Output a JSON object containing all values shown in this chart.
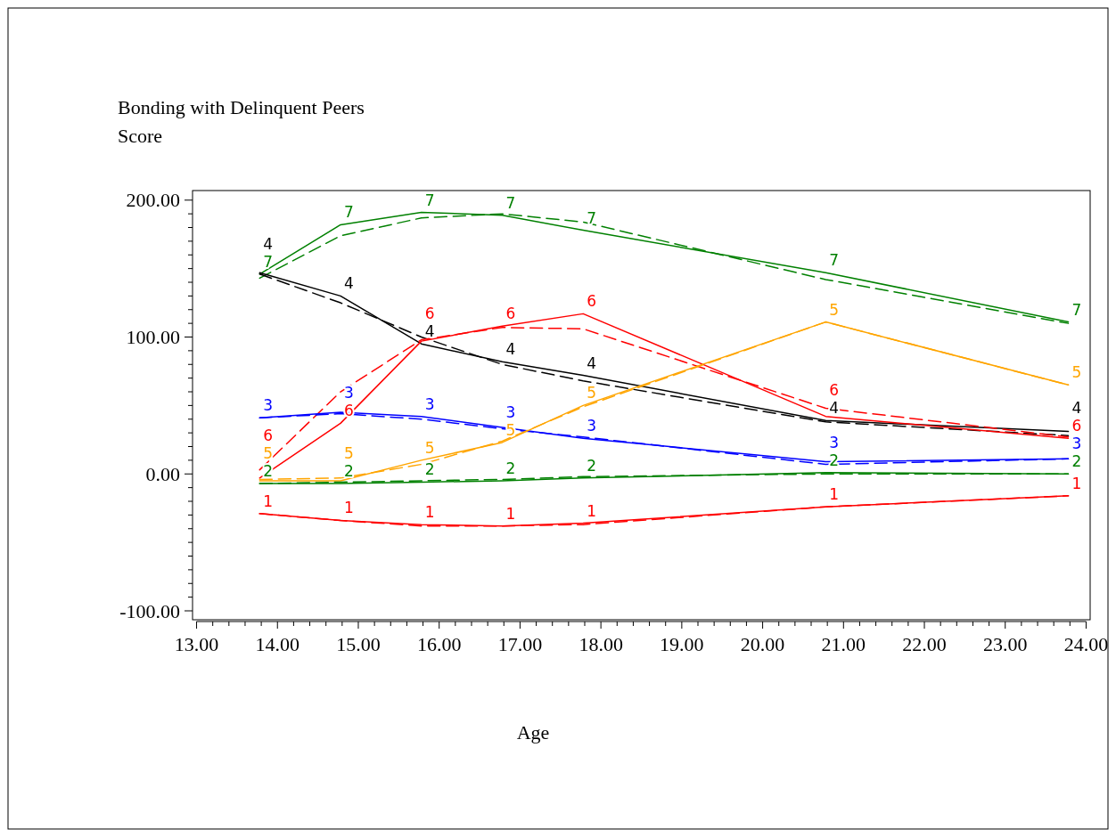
{
  "chart_data": {
    "type": "line",
    "ylabel": "Bonding with Delinquent Peers\nScore",
    "xlabel": "Age",
    "x": [
      13.78,
      14.78,
      15.78,
      16.78,
      17.78,
      20.78,
      23.78
    ],
    "xlim": [
      12.95,
      24.05
    ],
    "ylim": [
      -106.5,
      207
    ],
    "xticks": [
      {
        "value": 13,
        "label": "13.00"
      },
      {
        "value": 13.2,
        "label": null
      },
      {
        "value": 13.4,
        "label": null
      },
      {
        "value": 13.6,
        "label": null
      },
      {
        "value": 13.8,
        "label": null
      },
      {
        "value": 14,
        "label": "14.00"
      },
      {
        "value": 14.2,
        "label": null
      },
      {
        "value": 14.4,
        "label": null
      },
      {
        "value": 14.6,
        "label": null
      },
      {
        "value": 14.8,
        "label": null
      },
      {
        "value": 15,
        "label": "15.00"
      },
      {
        "value": 15.2,
        "label": null
      },
      {
        "value": 15.4,
        "label": null
      },
      {
        "value": 15.6,
        "label": null
      },
      {
        "value": 15.8,
        "label": null
      },
      {
        "value": 16,
        "label": "16.00"
      },
      {
        "value": 16.2,
        "label": null
      },
      {
        "value": 16.4,
        "label": null
      },
      {
        "value": 16.6,
        "label": null
      },
      {
        "value": 16.8,
        "label": null
      },
      {
        "value": 17,
        "label": "17.00"
      },
      {
        "value": 17.2,
        "label": null
      },
      {
        "value": 17.4,
        "label": null
      },
      {
        "value": 17.6,
        "label": null
      },
      {
        "value": 17.8,
        "label": null
      },
      {
        "value": 18,
        "label": "18.00"
      },
      {
        "value": 18.2,
        "label": null
      },
      {
        "value": 18.4,
        "label": null
      },
      {
        "value": 18.6,
        "label": null
      },
      {
        "value": 18.8,
        "label": null
      },
      {
        "value": 19,
        "label": "19.00"
      },
      {
        "value": 19.2,
        "label": null
      },
      {
        "value": 19.4,
        "label": null
      },
      {
        "value": 19.6,
        "label": null
      },
      {
        "value": 19.8,
        "label": null
      },
      {
        "value": 20,
        "label": "20.00"
      },
      {
        "value": 20.2,
        "label": null
      },
      {
        "value": 20.4,
        "label": null
      },
      {
        "value": 20.6,
        "label": null
      },
      {
        "value": 20.8,
        "label": null
      },
      {
        "value": 21,
        "label": "21.00"
      },
      {
        "value": 21.2,
        "label": null
      },
      {
        "value": 21.4,
        "label": null
      },
      {
        "value": 21.6,
        "label": null
      },
      {
        "value": 21.8,
        "label": null
      },
      {
        "value": 22,
        "label": "22.00"
      },
      {
        "value": 22.2,
        "label": null
      },
      {
        "value": 22.4,
        "label": null
      },
      {
        "value": 22.6,
        "label": null
      },
      {
        "value": 22.8,
        "label": null
      },
      {
        "value": 23,
        "label": "23.00"
      },
      {
        "value": 23.2,
        "label": null
      },
      {
        "value": 23.4,
        "label": null
      },
      {
        "value": 23.6,
        "label": null
      },
      {
        "value": 23.8,
        "label": null
      },
      {
        "value": 24,
        "label": "24.00"
      }
    ],
    "yticks": [
      {
        "value": -100,
        "label": "-100.00"
      },
      {
        "value": -90,
        "label": null
      },
      {
        "value": -80,
        "label": null
      },
      {
        "value": -70,
        "label": null
      },
      {
        "value": -60,
        "label": null
      },
      {
        "value": -50,
        "label": null
      },
      {
        "value": -40,
        "label": null
      },
      {
        "value": -30,
        "label": null
      },
      {
        "value": -20,
        "label": null
      },
      {
        "value": -10,
        "label": null
      },
      {
        "value": 0,
        "label": "0.00"
      },
      {
        "value": 10,
        "label": null
      },
      {
        "value": 20,
        "label": null
      },
      {
        "value": 30,
        "label": null
      },
      {
        "value": 40,
        "label": null
      },
      {
        "value": 50,
        "label": null
      },
      {
        "value": 60,
        "label": null
      },
      {
        "value": 70,
        "label": null
      },
      {
        "value": 80,
        "label": null
      },
      {
        "value": 90,
        "label": null
      },
      {
        "value": 100,
        "label": "100.00"
      },
      {
        "value": 110,
        "label": null
      },
      {
        "value": 120,
        "label": null
      },
      {
        "value": 130,
        "label": null
      },
      {
        "value": 140,
        "label": null
      },
      {
        "value": 150,
        "label": null
      },
      {
        "value": 160,
        "label": null
      },
      {
        "value": 170,
        "label": null
      },
      {
        "value": 180,
        "label": null
      },
      {
        "value": 190,
        "label": null
      },
      {
        "value": 200,
        "label": "200.00"
      }
    ],
    "grid": false,
    "legend": false,
    "series": [
      {
        "name": "7",
        "color": "#008000",
        "line_style": "solid",
        "values": [
          146,
          182,
          191,
          189,
          178,
          147,
          111
        ]
      },
      {
        "color": "#008000",
        "line_style": "dashed",
        "values": [
          143,
          174,
          187,
          190,
          184,
          142,
          110
        ]
      },
      {
        "name": "4",
        "color": "#000000",
        "line_style": "solid",
        "values": [
          147,
          130,
          95,
          82,
          72,
          39,
          31
        ]
      },
      {
        "color": "#000000",
        "line_style": "dashed",
        "values": [
          146,
          125,
          100,
          80,
          68,
          38,
          28
        ]
      },
      {
        "name": "6",
        "color": "#ff0000",
        "line_style": "solid",
        "values": [
          -3,
          37,
          97,
          108,
          117,
          42,
          26
        ]
      },
      {
        "color": "#ff0000",
        "line_style": "dashed",
        "values": [
          3,
          60,
          98,
          107,
          106,
          48,
          27
        ]
      },
      {
        "name": "3",
        "color": "#0000ff",
        "line_style": "solid",
        "values": [
          41,
          45,
          42,
          34,
          26,
          9,
          11
        ]
      },
      {
        "color": "#0000ff",
        "line_style": "dashed",
        "values": [
          41,
          44,
          40,
          33,
          27,
          7,
          11
        ]
      },
      {
        "name": "5",
        "color": "#ffa500",
        "line_style": "solid",
        "values": [
          -5,
          -5,
          10,
          23,
          50,
          111,
          65
        ]
      },
      {
        "color": "#ffa500",
        "line_style": "dashed",
        "values": [
          -4,
          -3,
          7,
          24,
          49,
          111,
          65
        ]
      },
      {
        "name": "2",
        "color": "#008000",
        "line_style": "solid",
        "values": [
          -7,
          -7,
          -6,
          -5,
          -3,
          1,
          0
        ]
      },
      {
        "color": "#008000",
        "line_style": "dashed",
        "values": [
          -7,
          -6,
          -5,
          -4,
          -2,
          0,
          0
        ]
      },
      {
        "name": "1",
        "color": "#ff0000",
        "line_style": "solid",
        "values": [
          -29,
          -34,
          -37,
          -38,
          -36,
          -24,
          -16
        ]
      },
      {
        "color": "#ff0000",
        "line_style": "dashed",
        "values": [
          -29,
          -34,
          -38,
          -38,
          -37,
          -24,
          -16
        ]
      }
    ]
  }
}
